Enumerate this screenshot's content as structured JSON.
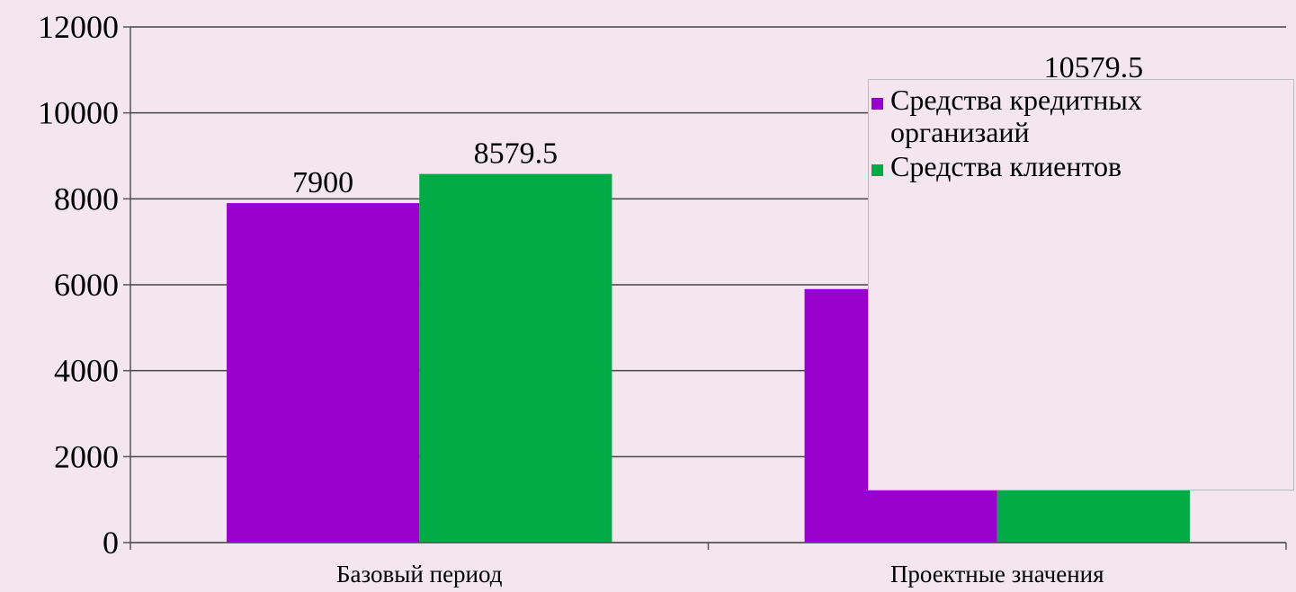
{
  "chart_data": {
    "type": "bar",
    "categories": [
      "Базовый период",
      "Проектные значения"
    ],
    "series": [
      {
        "name": "Средства кредитных организаий",
        "color": "#9900cc",
        "values": [
          7900,
          5900
        ]
      },
      {
        "name": "Средства клиентов",
        "color": "#00aa44",
        "values": [
          8579.5,
          10579.5
        ]
      }
    ],
    "ylim": [
      0,
      12000
    ],
    "yticks": [
      0,
      2000,
      4000,
      6000,
      8000,
      10000,
      12000
    ],
    "grid": true,
    "legend": "right"
  }
}
